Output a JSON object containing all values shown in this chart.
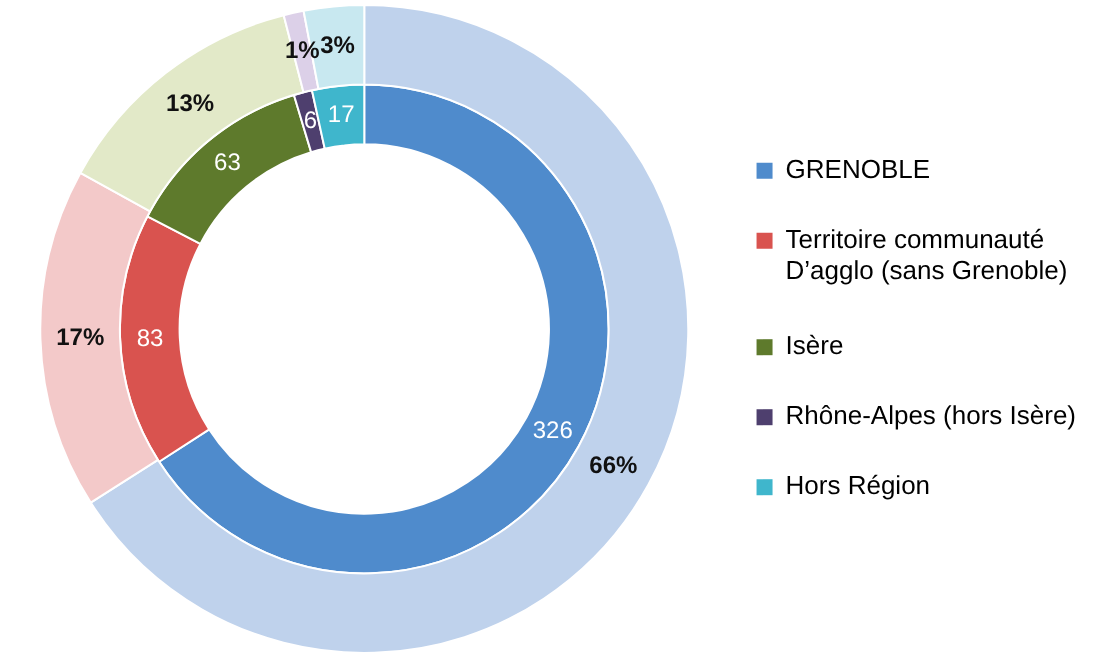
{
  "chart_data": {
    "type": "donut",
    "categories": [
      "GRENOBLE",
      "Territoire communauté D’agglo (sans Grenoble)",
      "Isère",
      "Rhône-Alpes (hors Isère)",
      "Hors Région"
    ],
    "series": [
      {
        "values": [
          326,
          83,
          63,
          6,
          17
        ],
        "colors": [
          "#4f8bcc",
          "#d9534f",
          "#5e7a2c",
          "#4e3f6e",
          "#3fb6cc"
        ]
      },
      {
        "values": [
          66,
          17,
          13,
          1,
          3
        ],
        "value_labels": [
          "66%",
          "17%",
          "13%",
          "1%",
          "3%"
        ],
        "colors": [
          "#bfd2ec",
          "#f3c9c9",
          "#e2e9c8",
          "#dcd0e8",
          "#c8e8f0"
        ]
      }
    ],
    "data_labels": true,
    "legend": "right"
  }
}
